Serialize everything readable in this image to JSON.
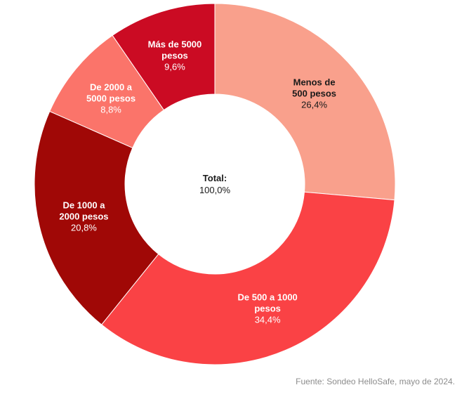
{
  "chart_data": {
    "type": "pie",
    "donut": true,
    "center_label": {
      "title": "Total:",
      "value": "100,0%"
    },
    "series": [
      {
        "label_lines": [
          "Menos de",
          "500 pesos"
        ],
        "value": 26.4,
        "value_label": "26,4%",
        "color": "#f9a08c",
        "text_color": "#1a1a1a"
      },
      {
        "label_lines": [
          "De 500 a 1000",
          "pesos"
        ],
        "value": 34.4,
        "value_label": "34,4%",
        "color": "#fa4245",
        "text_color": "#ffffff"
      },
      {
        "label_lines": [
          "De 1000 a",
          "2000 pesos"
        ],
        "value": 20.8,
        "value_label": "20,8%",
        "color": "#a00806",
        "text_color": "#ffffff"
      },
      {
        "label_lines": [
          "De 2000 a",
          "5000 pesos"
        ],
        "value": 8.8,
        "value_label": "8,8%",
        "color": "#fb746a",
        "text_color": "#ffffff"
      },
      {
        "label_lines": [
          "Más de 5000",
          "pesos"
        ],
        "value": 9.6,
        "value_label": "9,6%",
        "color": "#cb0b23",
        "text_color": "#ffffff"
      }
    ]
  },
  "source": "Fuente: Sondeo HelloSafe, mayo de 2024."
}
